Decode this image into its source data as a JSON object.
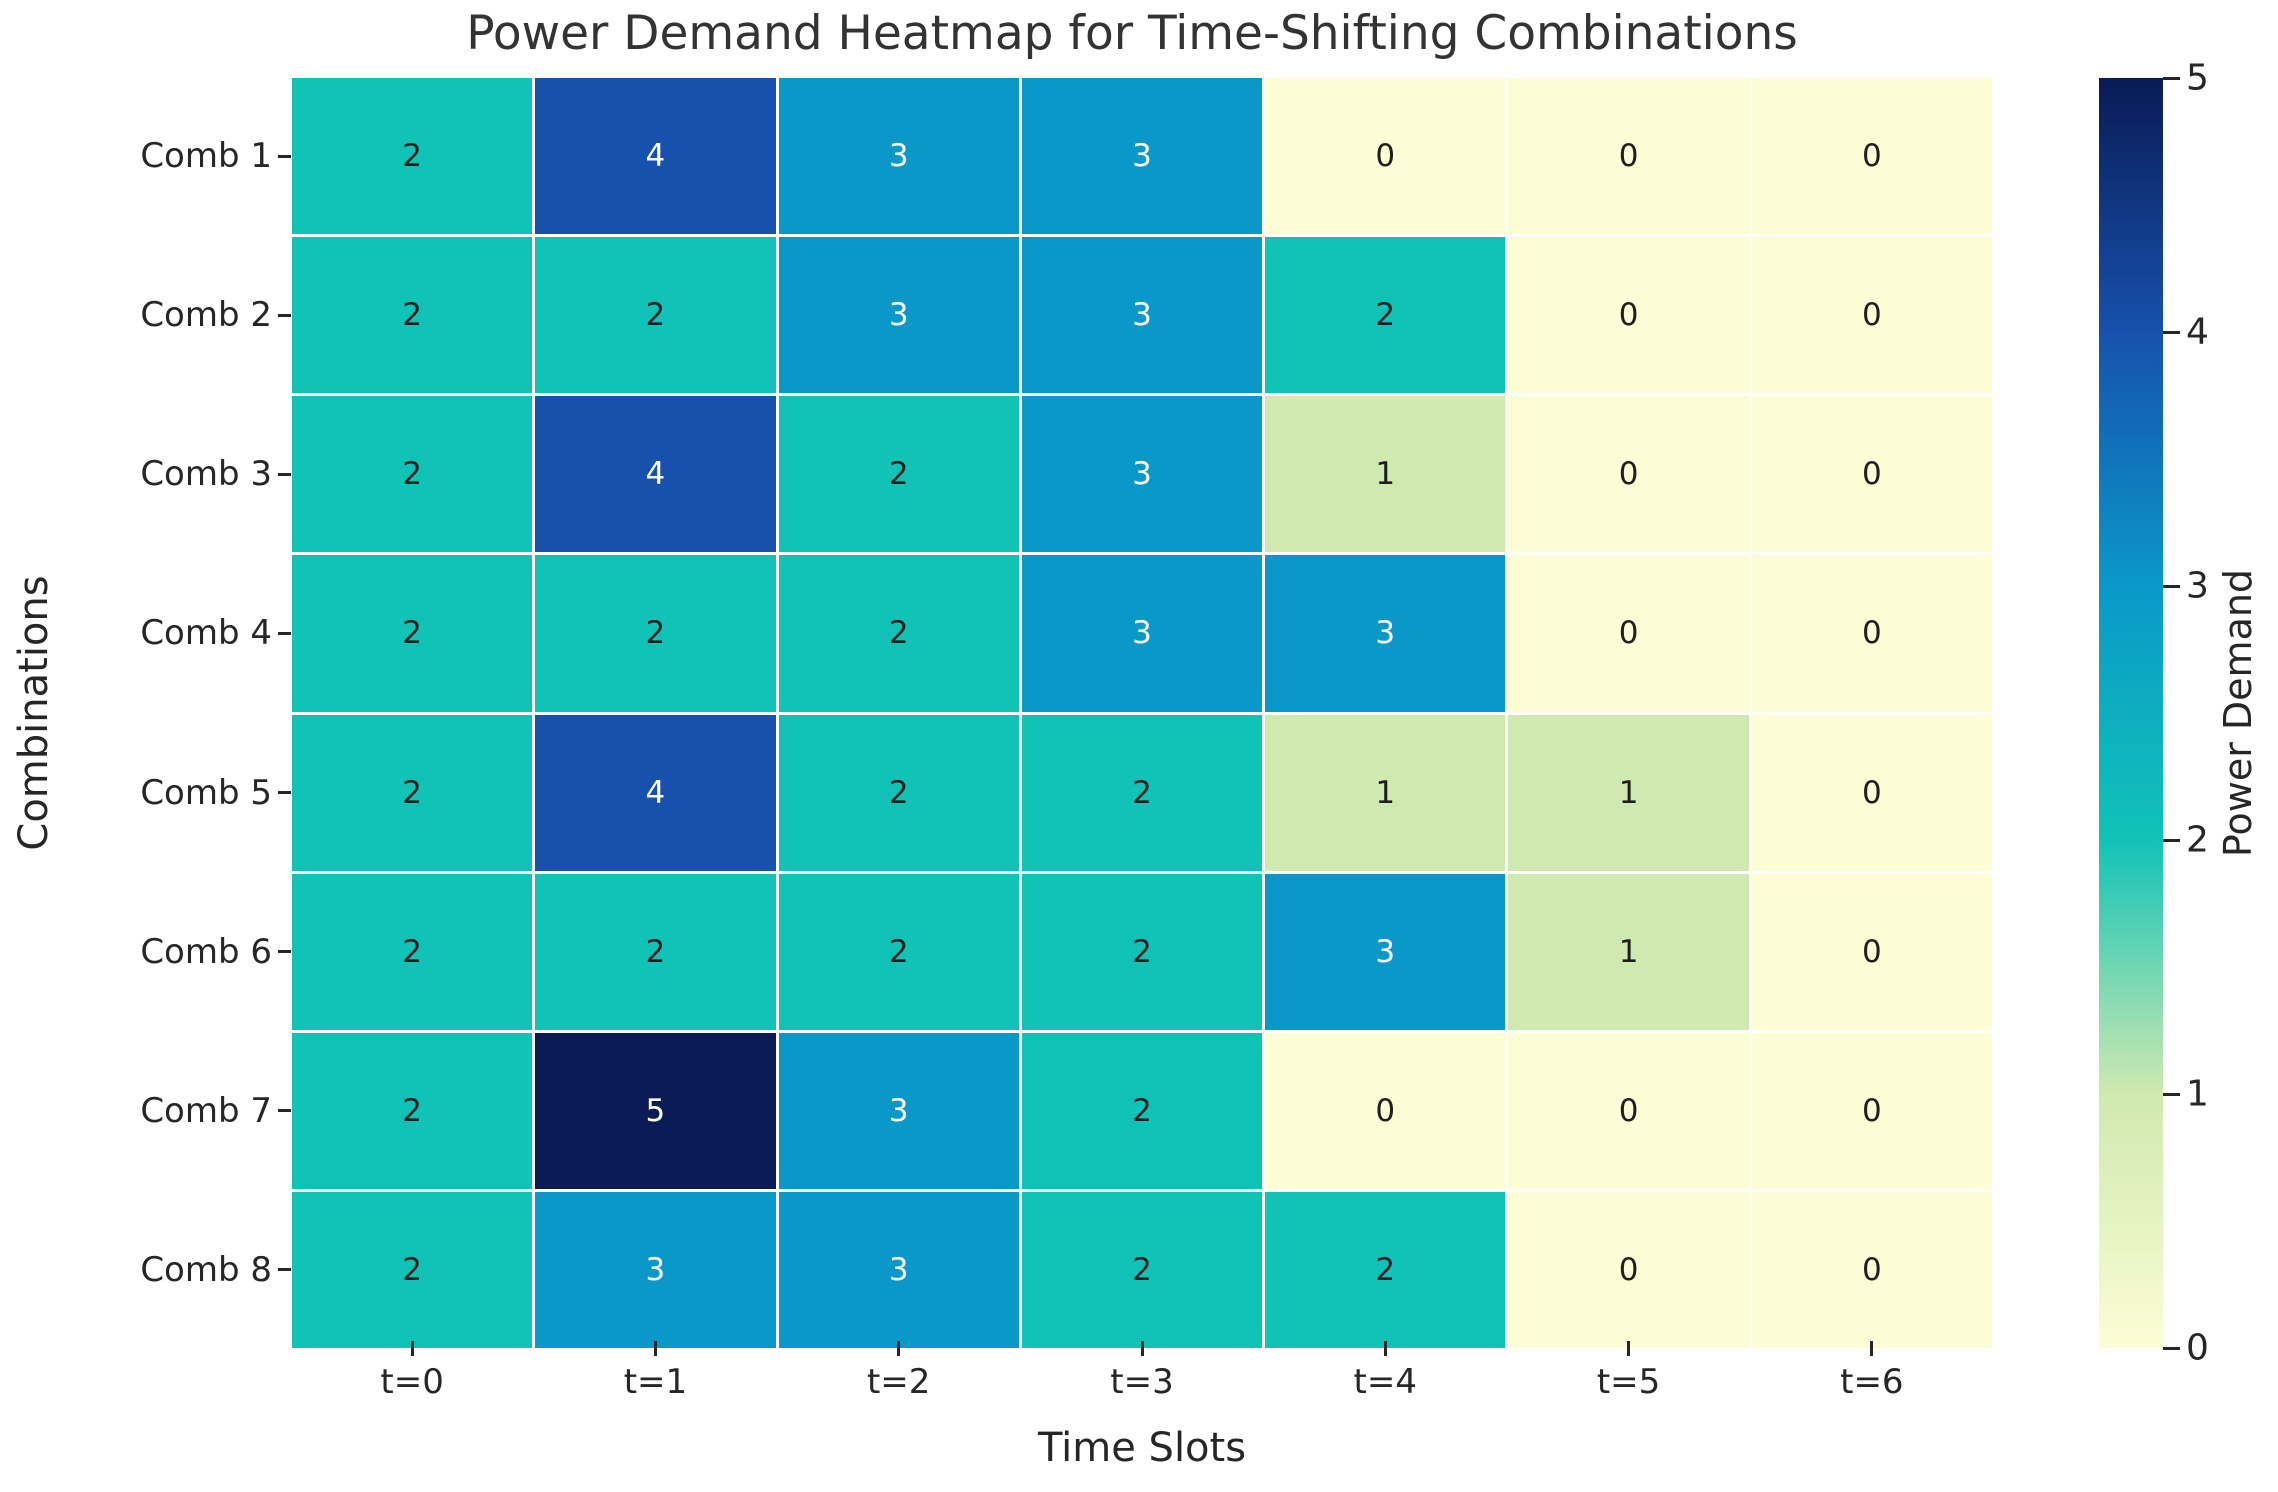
{
  "chart_data": {
    "type": "heatmap",
    "title": "Power Demand Heatmap for Time-Shifting Combinations",
    "xlabel": "Time Slots",
    "ylabel": "Combinations",
    "x_ticklabels": [
      "t=0",
      "t=1",
      "t=2",
      "t=3",
      "t=4",
      "t=5",
      "t=6"
    ],
    "y_ticklabels": [
      "Comb 1",
      "Comb 2",
      "Comb 3",
      "Comb 4",
      "Comb 5",
      "Comb 6",
      "Comb 7",
      "Comb 8"
    ],
    "values": [
      [
        2,
        4,
        3,
        3,
        0,
        0,
        0
      ],
      [
        2,
        2,
        3,
        3,
        2,
        0,
        0
      ],
      [
        2,
        4,
        2,
        3,
        1,
        0,
        0
      ],
      [
        2,
        2,
        2,
        3,
        3,
        0,
        0
      ],
      [
        2,
        4,
        2,
        2,
        1,
        1,
        0
      ],
      [
        2,
        2,
        2,
        2,
        3,
        1,
        0
      ],
      [
        2,
        5,
        3,
        2,
        0,
        0,
        0
      ],
      [
        2,
        3,
        3,
        2,
        2,
        0,
        0
      ]
    ],
    "vmin": 0,
    "vmax": 5,
    "grid": true,
    "gridline_color": "#ffffff",
    "colormap": "YlGnBu",
    "palette": {
      "0": "#fcfdd4",
      "1": "#cfe9b0",
      "2": "#11c3b7",
      "3": "#0a98c9",
      "4": "#1751ad",
      "5": "#0a1b55"
    },
    "annotation_color_light_cells": "#1e1e1e",
    "annotation_color_dark_cells": "#ffffff",
    "dark_cell_threshold": 3,
    "colorbar": {
      "label": "Power Demand",
      "ticks": [
        0,
        1,
        2,
        3,
        4,
        5
      ],
      "position": "right"
    }
  }
}
